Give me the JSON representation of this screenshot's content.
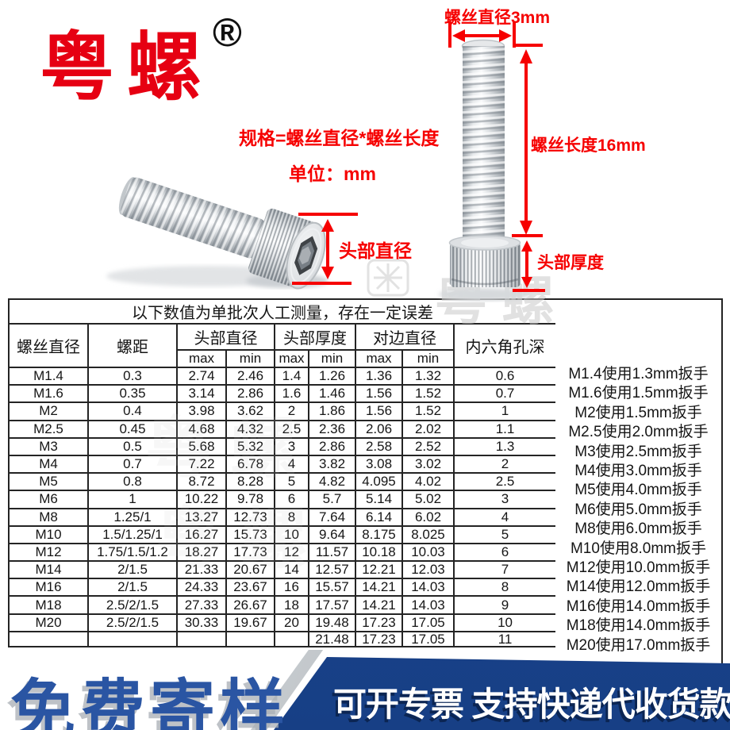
{
  "brand": {
    "name": "粤螺",
    "registered": "®"
  },
  "notes": {
    "formula": "规格=螺丝直径*螺丝长度",
    "unit": "单位：mm"
  },
  "annotations": {
    "screw_diameter": "螺丝直径3mm",
    "screw_length": "螺丝长度16mm",
    "head_thickness": "头部厚度",
    "head_diameter": "头部直径"
  },
  "watermark": {
    "text": "粤 螺"
  },
  "table": {
    "title": "以下数值为单批次人工测量，存在一定误差",
    "headers": {
      "diameter": "螺丝直径",
      "pitch": "螺距",
      "head_diameter": "头部直径",
      "head_thickness": "头部厚度",
      "across_flats": "对边直径",
      "socket_depth": "内六角孔深",
      "max": "max",
      "min": "min"
    },
    "rows": [
      [
        "M1.4",
        "0.3",
        "2.74",
        "2.46",
        "1.4",
        "1.26",
        "1.36",
        "1.32",
        "0.6"
      ],
      [
        "M1.6",
        "0.35",
        "3.14",
        "2.86",
        "1.6",
        "1.46",
        "1.56",
        "1.52",
        "0.7"
      ],
      [
        "M2",
        "0.4",
        "3.98",
        "3.62",
        "2",
        "1.86",
        "1.56",
        "1.52",
        "1"
      ],
      [
        "M2.5",
        "0.45",
        "4.68",
        "4.32",
        "2.5",
        "2.36",
        "2.06",
        "2.02",
        "1.1"
      ],
      [
        "M3",
        "0.5",
        "5.68",
        "5.32",
        "3",
        "2.86",
        "2.58",
        "2.52",
        "1.3"
      ],
      [
        "M4",
        "0.7",
        "7.22",
        "6.78",
        "4",
        "3.82",
        "3.08",
        "3.02",
        "2"
      ],
      [
        "M5",
        "0.8",
        "8.72",
        "8.28",
        "5",
        "4.82",
        "4.095",
        "4.02",
        "2.5"
      ],
      [
        "M6",
        "1",
        "10.22",
        "9.78",
        "6",
        "5.7",
        "5.14",
        "5.02",
        "3"
      ],
      [
        "M8",
        "1.25/1",
        "13.27",
        "12.73",
        "8",
        "7.64",
        "6.14",
        "6.02",
        "4"
      ],
      [
        "M10",
        "1.5/1.25/1",
        "16.27",
        "15.73",
        "10",
        "9.64",
        "8.175",
        "8.025",
        "5"
      ],
      [
        "M12",
        "1.75/1.5/1.2",
        "18.27",
        "17.73",
        "12",
        "11.57",
        "10.18",
        "10.03",
        "6"
      ],
      [
        "M14",
        "2/1.5",
        "21.33",
        "20.67",
        "14",
        "12.57",
        "12.21",
        "12.03",
        "7"
      ],
      [
        "M16",
        "2/1.5",
        "24.33",
        "23.67",
        "16",
        "15.57",
        "14.21",
        "14.03",
        "8"
      ],
      [
        "M18",
        "2.5/2/1.5",
        "27.33",
        "26.67",
        "18",
        "17.57",
        "14.21",
        "14.03",
        "9"
      ],
      [
        "M20",
        "2.5/2/1.5",
        "30.33",
        "19.67",
        "20",
        "19.48",
        "17.23",
        "17.05",
        "10"
      ]
    ],
    "partial_row": [
      "",
      "",
      "",
      "",
      "",
      "21.48",
      "17.23",
      "17.05",
      "11"
    ]
  },
  "wrench_notes": [
    "M1.4使用1.3mm扳手",
    "M1.6使用1.5mm扳手",
    "M2使用1.5mm扳手",
    "M2.5使用2.0mm扳手",
    "M3使用2.5mm扳手",
    "M4使用3.0mm扳手",
    "M5使用4.0mm扳手",
    "M6使用5.0mm扳手",
    "M8使用6.0mm扳手",
    "M10使用8.0mm扳手",
    "M12使用10.0mm扳手",
    "M14使用12.0mm扳手",
    "M16使用14.0mm扳手",
    "M18使用14.0mm扳手",
    "M20使用17.0mm扳手"
  ],
  "banner": {
    "free_sample": "免费寄样",
    "invoice": "可开专票 支持快递代收货款"
  },
  "colors": {
    "brand_red": "#e60012",
    "annotation_red": "#f60000",
    "banner_navy": "#1b4c99",
    "banner_blue": "#2a55a3"
  }
}
